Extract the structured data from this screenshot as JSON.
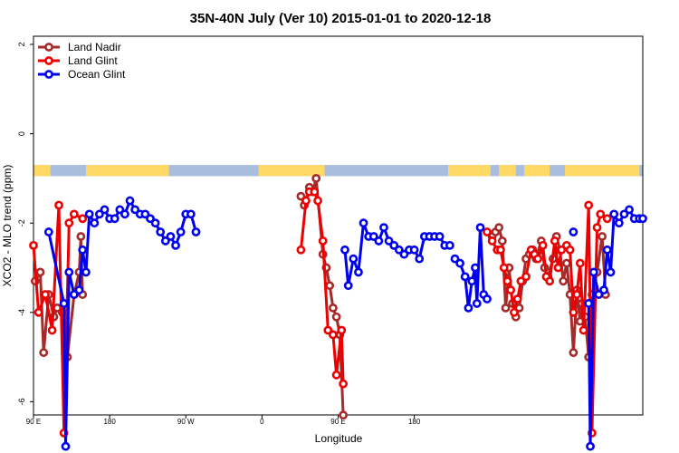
{
  "chart_data": {
    "type": "line",
    "title": "35N-40N July (Ver 10)   2015-01-01 to 2020-12-18",
    "xlabel": "Longitude",
    "ylabel": "XCO2 - MLO trend (ppm)",
    "xlim": [
      90,
      450
    ],
    "ylim": [
      -7.8,
      2.5
    ],
    "x_ticks": [
      {
        "value": 90,
        "label": "90 E"
      },
      {
        "value": 180,
        "label": "180"
      },
      {
        "value": 270,
        "label": "90 W"
      },
      {
        "value": 360,
        "label": "0"
      },
      {
        "value": 450,
        "label": "90 E"
      },
      {
        "value": 540,
        "label": "180"
      }
    ],
    "y_ticks": [
      -6,
      -4,
      -2,
      0,
      2
    ],
    "legend_position": "top-left",
    "background_strip": {
      "y_range": [
        -0.7,
        -0.95
      ],
      "land_color": "#FFD966",
      "ocean_color": "#A9BEDD"
    },
    "series": [
      {
        "name": "Land Nadir",
        "color": "#A52A2A",
        "segments": [
          [
            [
              91,
              -3.3
            ],
            [
              94,
              -3.1
            ],
            [
              96,
              -4.9
            ],
            [
              99,
              -3.6
            ],
            [
              102,
              -4.1
            ],
            [
              104,
              -3.9
            ],
            [
              107,
              -4.0
            ],
            [
              110,
              -5.0
            ],
            [
              114,
              -3.6
            ],
            [
              117,
              -3.1
            ],
            [
              118,
              -2.3
            ],
            [
              119,
              -3.6
            ]
          ],
          [
            [
              248,
              -1.4
            ],
            [
              250,
              -1.6
            ],
            [
              253,
              -1.2
            ],
            [
              255,
              -1.3
            ],
            [
              257,
              -1.0
            ],
            [
              261,
              -2.7
            ],
            [
              263,
              -3.0
            ],
            [
              265,
              -3.4
            ],
            [
              267,
              -3.9
            ],
            [
              269,
              -4.1
            ],
            [
              271,
              -4.5
            ],
            [
              273,
              -6.3
            ]
          ],
          [
            [
              361,
              -2.3
            ],
            [
              363,
              -2.2
            ],
            [
              365,
              -2.1
            ],
            [
              367,
              -2.4
            ],
            [
              369,
              -3.9
            ],
            [
              371,
              -3.0
            ],
            [
              373,
              -3.8
            ],
            [
              375,
              -4.1
            ],
            [
              377,
              -3.9
            ],
            [
              379,
              -3.3
            ],
            [
              381,
              -2.8
            ],
            [
              383,
              -2.7
            ],
            [
              385,
              -2.6
            ],
            [
              387,
              -2.8
            ],
            [
              390,
              -2.4
            ],
            [
              392,
              -3.0
            ],
            [
              394,
              -3.2
            ],
            [
              397,
              -2.8
            ],
            [
              399,
              -2.3
            ],
            [
              401,
              -2.6
            ],
            [
              403,
              -3.3
            ],
            [
              405,
              -2.9
            ],
            [
              407,
              -3.6
            ],
            [
              409,
              -4.9
            ],
            [
              411,
              -3.5
            ],
            [
              413,
              -4.2
            ],
            [
              414,
              -3.8
            ],
            [
              416,
              -4.1
            ],
            [
              418,
              -5.0
            ],
            [
              420,
              -3.6
            ],
            [
              423,
              -3.1
            ],
            [
              426,
              -2.3
            ],
            [
              428,
              -3.6
            ]
          ]
        ]
      },
      {
        "name": "Land Glint",
        "color": "#EE0000",
        "segments": [
          [
            [
              90,
              -2.5
            ],
            [
              93,
              -4.0
            ],
            [
              97,
              -3.6
            ],
            [
              101,
              -4.4
            ],
            [
              105,
              -1.6
            ],
            [
              108,
              -6.7
            ],
            [
              111,
              -2.0
            ],
            [
              114,
              -1.8
            ],
            [
              119,
              -1.9
            ]
          ],
          [
            [
              248,
              -2.6
            ],
            [
              251,
              -1.5
            ],
            [
              253,
              -1.3
            ],
            [
              256,
              -1.3
            ],
            [
              258,
              -1.5
            ],
            [
              261,
              -2.4
            ],
            [
              264,
              -4.4
            ],
            [
              267,
              -4.5
            ],
            [
              269,
              -5.4
            ],
            [
              272,
              -4.4
            ],
            [
              273,
              -5.6
            ]
          ],
          [
            [
              358,
              -2.2
            ],
            [
              361,
              -2.4
            ],
            [
              364,
              -2.6
            ],
            [
              366,
              -2.6
            ],
            [
              368,
              -3.0
            ],
            [
              370,
              -3.3
            ],
            [
              372,
              -3.5
            ],
            [
              374,
              -4.0
            ],
            [
              376,
              -3.7
            ],
            [
              378,
              -3.3
            ],
            [
              381,
              -3.2
            ],
            [
              384,
              -2.6
            ],
            [
              386,
              -2.7
            ],
            [
              388,
              -2.8
            ],
            [
              391,
              -2.5
            ],
            [
              393,
              -3.2
            ],
            [
              395,
              -3.3
            ],
            [
              398,
              -2.4
            ],
            [
              400,
              -3.0
            ],
            [
              402,
              -2.6
            ],
            [
              405,
              -2.5
            ],
            [
              407,
              -2.6
            ],
            [
              409,
              -4.0
            ],
            [
              411,
              -3.6
            ],
            [
              413,
              -2.9
            ],
            [
              415,
              -4.4
            ],
            [
              418,
              -1.6
            ],
            [
              420,
              -6.7
            ],
            [
              423,
              -2.1
            ],
            [
              425,
              -1.8
            ],
            [
              429,
              -1.9
            ]
          ]
        ]
      },
      {
        "name": "Ocean Glint",
        "color": "#0000EE",
        "segments": [
          [
            [
              99,
              -2.2
            ],
            [
              108,
              -3.8
            ],
            [
              109,
              -7.0
            ],
            [
              111,
              -3.1
            ],
            [
              114,
              -3.6
            ],
            [
              117,
              -3.5
            ],
            [
              119,
              -2.6
            ],
            [
              121,
              -3.1
            ],
            [
              123,
              -1.8
            ],
            [
              126,
              -2.0
            ],
            [
              129,
              -1.8
            ],
            [
              132,
              -1.7
            ],
            [
              135,
              -1.9
            ],
            [
              138,
              -1.9
            ],
            [
              141,
              -1.7
            ],
            [
              144,
              -1.8
            ],
            [
              147,
              -1.5
            ],
            [
              150,
              -1.7
            ],
            [
              153,
              -1.8
            ],
            [
              156,
              -1.8
            ],
            [
              159,
              -1.9
            ],
            [
              162,
              -2.0
            ],
            [
              165,
              -2.2
            ],
            [
              168,
              -2.4
            ],
            [
              171,
              -2.3
            ],
            [
              174,
              -2.5
            ],
            [
              177,
              -2.2
            ],
            [
              180,
              -1.8
            ],
            [
              183,
              -1.8
            ],
            [
              186,
              -2.2
            ]
          ],
          [
            [
              274,
              -2.6
            ],
            [
              276,
              -3.4
            ],
            [
              279,
              -2.8
            ],
            [
              282,
              -3.1
            ],
            [
              285,
              -2.0
            ],
            [
              288,
              -2.3
            ],
            [
              291,
              -2.3
            ],
            [
              294,
              -2.4
            ],
            [
              297,
              -2.1
            ],
            [
              300,
              -2.4
            ],
            [
              303,
              -2.5
            ],
            [
              306,
              -2.6
            ],
            [
              309,
              -2.7
            ],
            [
              312,
              -2.6
            ],
            [
              315,
              -2.6
            ],
            [
              318,
              -2.8
            ],
            [
              321,
              -2.3
            ],
            [
              324,
              -2.3
            ],
            [
              327,
              -2.3
            ],
            [
              330,
              -2.3
            ],
            [
              333,
              -2.5
            ],
            [
              336,
              -2.5
            ]
          ],
          [
            [
              339,
              -2.8
            ],
            [
              342,
              -2.9
            ],
            [
              345,
              -3.2
            ],
            [
              347,
              -3.9
            ],
            [
              349,
              -3.3
            ],
            [
              351,
              -3.0
            ],
            [
              352,
              -3.8
            ],
            [
              354,
              -2.1
            ],
            [
              356,
              -3.6
            ],
            [
              358,
              -3.7
            ]
          ],
          [
            [
              409,
              -2.2
            ]
          ],
          [
            [
              418,
              -3.8
            ],
            [
              419,
              -7.0
            ],
            [
              421,
              -3.1
            ],
            [
              424,
              -3.6
            ],
            [
              427,
              -3.5
            ],
            [
              429,
              -2.6
            ],
            [
              431,
              -3.1
            ],
            [
              433,
              -1.8
            ],
            [
              436,
              -2.0
            ],
            [
              439,
              -1.8
            ],
            [
              442,
              -1.7
            ],
            [
              445,
              -1.9
            ],
            [
              448,
              -1.9
            ],
            [
              450,
              -1.9
            ]
          ]
        ]
      }
    ]
  }
}
